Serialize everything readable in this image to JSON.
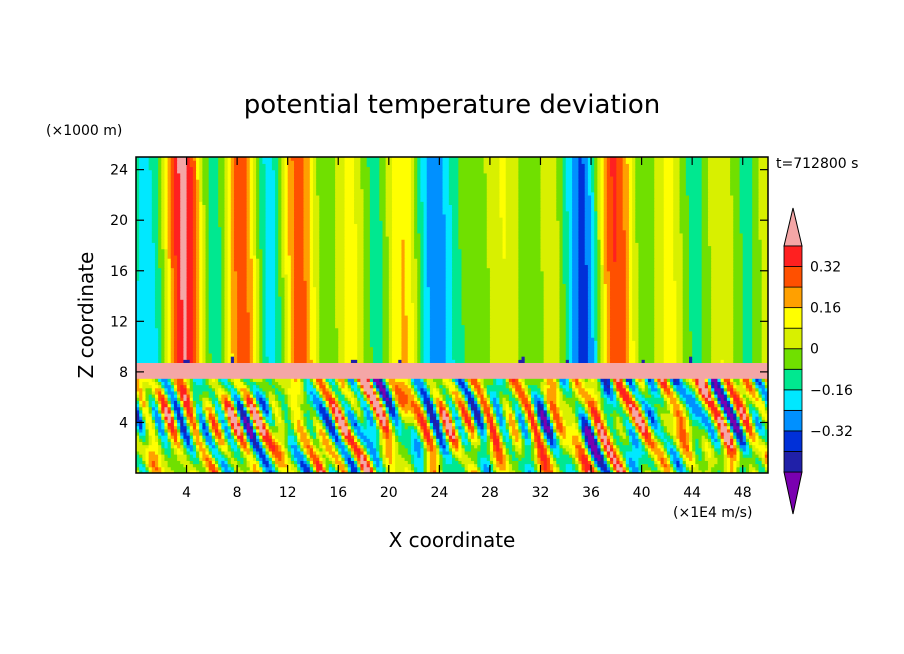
{
  "chart_data": {
    "type": "heatmap",
    "title": "potential temperature deviation",
    "xlabel": "X coordinate",
    "ylabel": "Z coordinate",
    "x_unit": "(×1E4 m/s)",
    "y_unit": "(×1000 m)",
    "time_label": "t=712800 s",
    "xlim": [
      0,
      50
    ],
    "ylim": [
      0,
      25
    ],
    "x_ticks": [
      4,
      8,
      12,
      16,
      20,
      24,
      28,
      32,
      36,
      40,
      44,
      48
    ],
    "x_tick_labels": [
      "4",
      "8",
      "12",
      "16",
      "20",
      "24",
      "28",
      "32",
      "36",
      "40",
      "44",
      "48"
    ],
    "y_ticks": [
      4,
      8,
      12,
      16,
      20,
      24
    ],
    "y_tick_labels": [
      "4",
      "8",
      "12",
      "16",
      "20",
      "24"
    ],
    "colorbar": {
      "levels": [
        -0.48,
        -0.4,
        -0.32,
        -0.24,
        -0.16,
        -0.08,
        0,
        0.08,
        0.16,
        0.24,
        0.32,
        0.4
      ],
      "colors": [
        "#7a00b0",
        "#2020a8",
        "#0030d8",
        "#0090ff",
        "#00e8ff",
        "#00e890",
        "#70e000",
        "#d8f000",
        "#ffff00",
        "#ffa000",
        "#ff5000",
        "#ff2020",
        "#f4a6a6"
      ],
      "tick_values": [
        -0.32,
        -0.16,
        0,
        0.16,
        0.32
      ],
      "tick_labels": [
        "−0.32",
        "−0.16",
        "0",
        "0.16",
        "0.32"
      ]
    }
  }
}
